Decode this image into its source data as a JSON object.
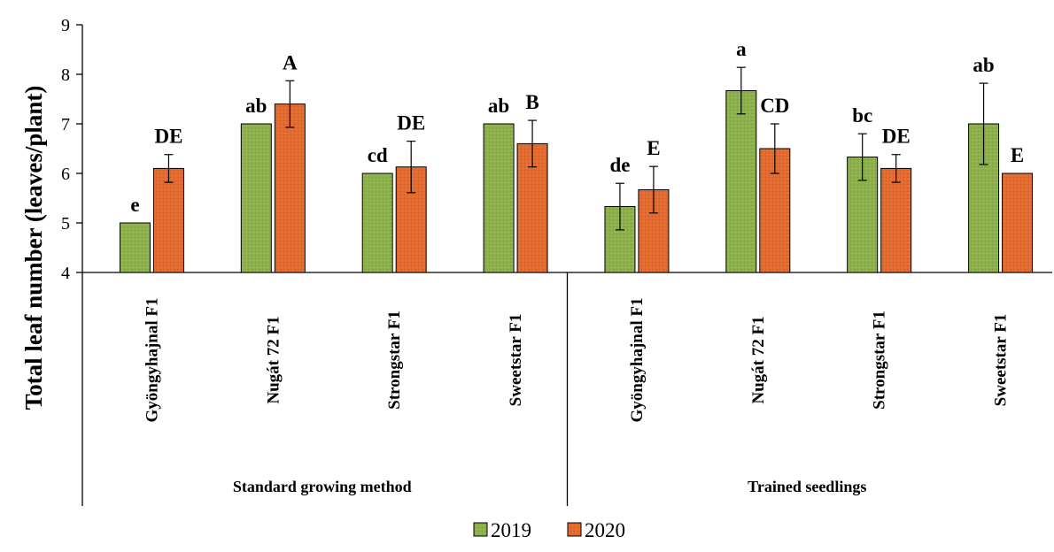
{
  "chart_data": {
    "type": "bar",
    "ylabel": "Total leaf number  (leaves/plant)",
    "ylim": [
      4,
      9
    ],
    "yticks": [
      "4",
      "5",
      "6",
      "7",
      "8",
      "9"
    ],
    "grid": false,
    "legend_position": "bottom",
    "groups": [
      {
        "label": "Standard growing method",
        "categories": [
          "Gyöngyhajnal F1",
          "Nugát 72 F1",
          "Strongstar F1",
          "Sweetstar F1"
        ]
      },
      {
        "label": "Trained seedlings",
        "categories": [
          "Gyöngyhajnal F1",
          "Nugát 72 F1",
          "Strongstar F1",
          "Sweetstar F1"
        ]
      }
    ],
    "series": [
      {
        "name": "2019",
        "color": "#8db04a",
        "values": [
          5.0,
          7.0,
          6.0,
          7.0,
          5.33,
          7.67,
          6.33,
          7.0
        ],
        "errors": [
          0,
          0,
          0,
          0,
          0.47,
          0.47,
          0.47,
          0.82
        ],
        "letters": [
          "e",
          "ab",
          "cd",
          "ab",
          "de",
          "a",
          "bc",
          "ab"
        ]
      },
      {
        "name": "2020",
        "color": "#e46a2e",
        "values": [
          6.1,
          7.4,
          6.13,
          6.6,
          5.67,
          6.5,
          6.1,
          6.0
        ],
        "errors": [
          0.28,
          0.47,
          0.52,
          0.47,
          0.47,
          0.5,
          0.28,
          0
        ],
        "letters": [
          "DE",
          "A",
          "DE",
          "B",
          "E",
          "CD",
          "DE",
          "E"
        ]
      }
    ]
  }
}
